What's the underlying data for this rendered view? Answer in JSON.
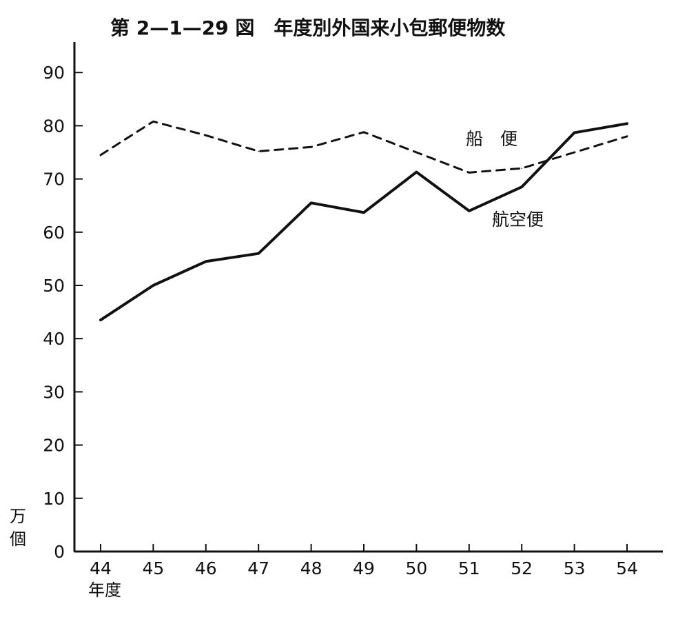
{
  "chart_data": {
    "type": "line",
    "title": "第 2—1—29 図　年度別外国来小包郵便物数",
    "xlabel": "年度",
    "ylabel": "万個",
    "categories": [
      "44",
      "45",
      "46",
      "47",
      "48",
      "49",
      "50",
      "51",
      "52",
      "53",
      "54"
    ],
    "ylim": [
      0,
      90
    ],
    "yticks": [
      "0",
      "10",
      "20",
      "30",
      "40",
      "50",
      "60",
      "70",
      "80",
      "90"
    ],
    "grid": false,
    "series": [
      {
        "name": "船　便",
        "style": "dashed",
        "color": "#111111",
        "values": [
          74.5,
          80.8,
          78.2,
          75.2,
          76.0,
          78.8,
          75.0,
          71.2,
          72.0,
          75.0,
          78.0
        ]
      },
      {
        "name": "航空便",
        "style": "solid",
        "color": "#111111",
        "values": [
          43.5,
          50.0,
          54.5,
          56.0,
          65.5,
          63.7,
          71.3,
          64.0,
          68.5,
          78.7,
          80.4
        ]
      }
    ]
  }
}
